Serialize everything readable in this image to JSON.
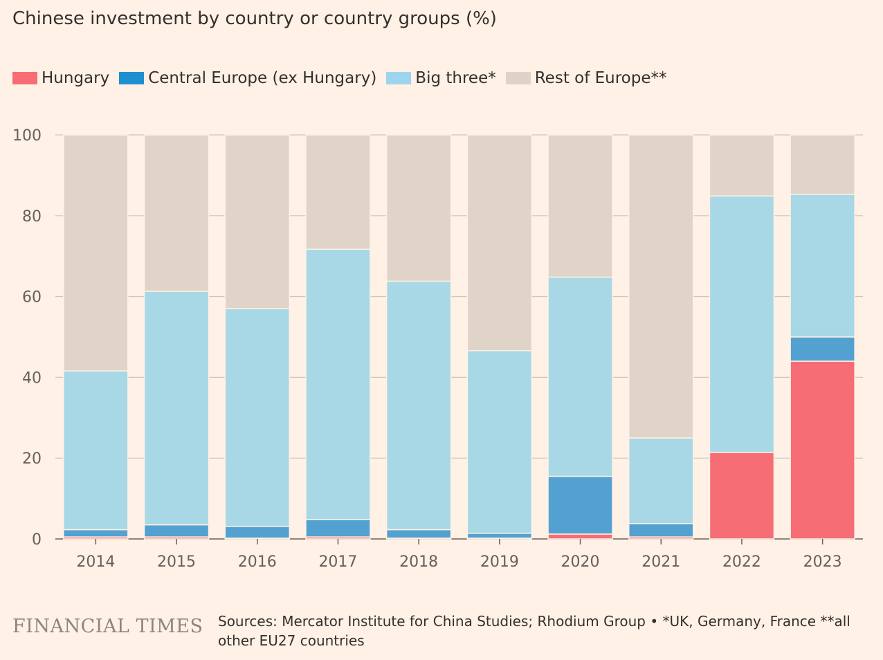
{
  "header": {
    "title": "Chinese investment by country or country groups (%)"
  },
  "legend": {
    "items": [
      {
        "label": "Hungary",
        "color": "#F76D75"
      },
      {
        "label": "Central Europe (ex Hungary)",
        "color": "#52A1D1"
      },
      {
        "label": "Big three*",
        "color": "#A8D8E5"
      },
      {
        "label": "Rest of Europe**",
        "color": "#E0D3C8"
      }
    ]
  },
  "footer": {
    "brand": "FINANCIAL TIMES",
    "sources": "Sources: Mercator Institute for China Studies; Rhodium Group • *UK, Germany, France **all other EU27 countries"
  },
  "chart_data": {
    "type": "bar",
    "stacked": true,
    "title": "Chinese investment by country or country groups (%)",
    "categories": [
      "2014",
      "2015",
      "2016",
      "2017",
      "2018",
      "2019",
      "2020",
      "2021",
      "2022",
      "2023"
    ],
    "series": [
      {
        "name": "Hungary",
        "color": "#F76D75",
        "values": [
          0.5,
          0.5,
          0.2,
          0.5,
          0.2,
          0.2,
          1.2,
          0.5,
          21.4,
          44
        ]
      },
      {
        "name": "Central Europe (ex Hungary)",
        "color": "#52A1D1",
        "values": [
          1.8,
          3.0,
          2.9,
          4.3,
          2.1,
          1.2,
          14.3,
          3.3,
          0,
          6
        ]
      },
      {
        "name": "Big three*",
        "color": "#A8D8E5",
        "values": [
          39.3,
          57.8,
          53.9,
          66.9,
          61.5,
          45.2,
          49.3,
          21.2,
          63.5,
          35.3
        ]
      },
      {
        "name": "Rest of Europe**",
        "color": "#E0D3C8",
        "values": [
          58.4,
          38.7,
          43.0,
          28.3,
          36.2,
          53.4,
          35.2,
          75.0,
          15.1,
          14.7
        ]
      }
    ],
    "ylim": [
      0,
      100
    ],
    "yticks": [
      0,
      20,
      40,
      60,
      80,
      100
    ],
    "grid": true,
    "legend_position": "top-left"
  }
}
